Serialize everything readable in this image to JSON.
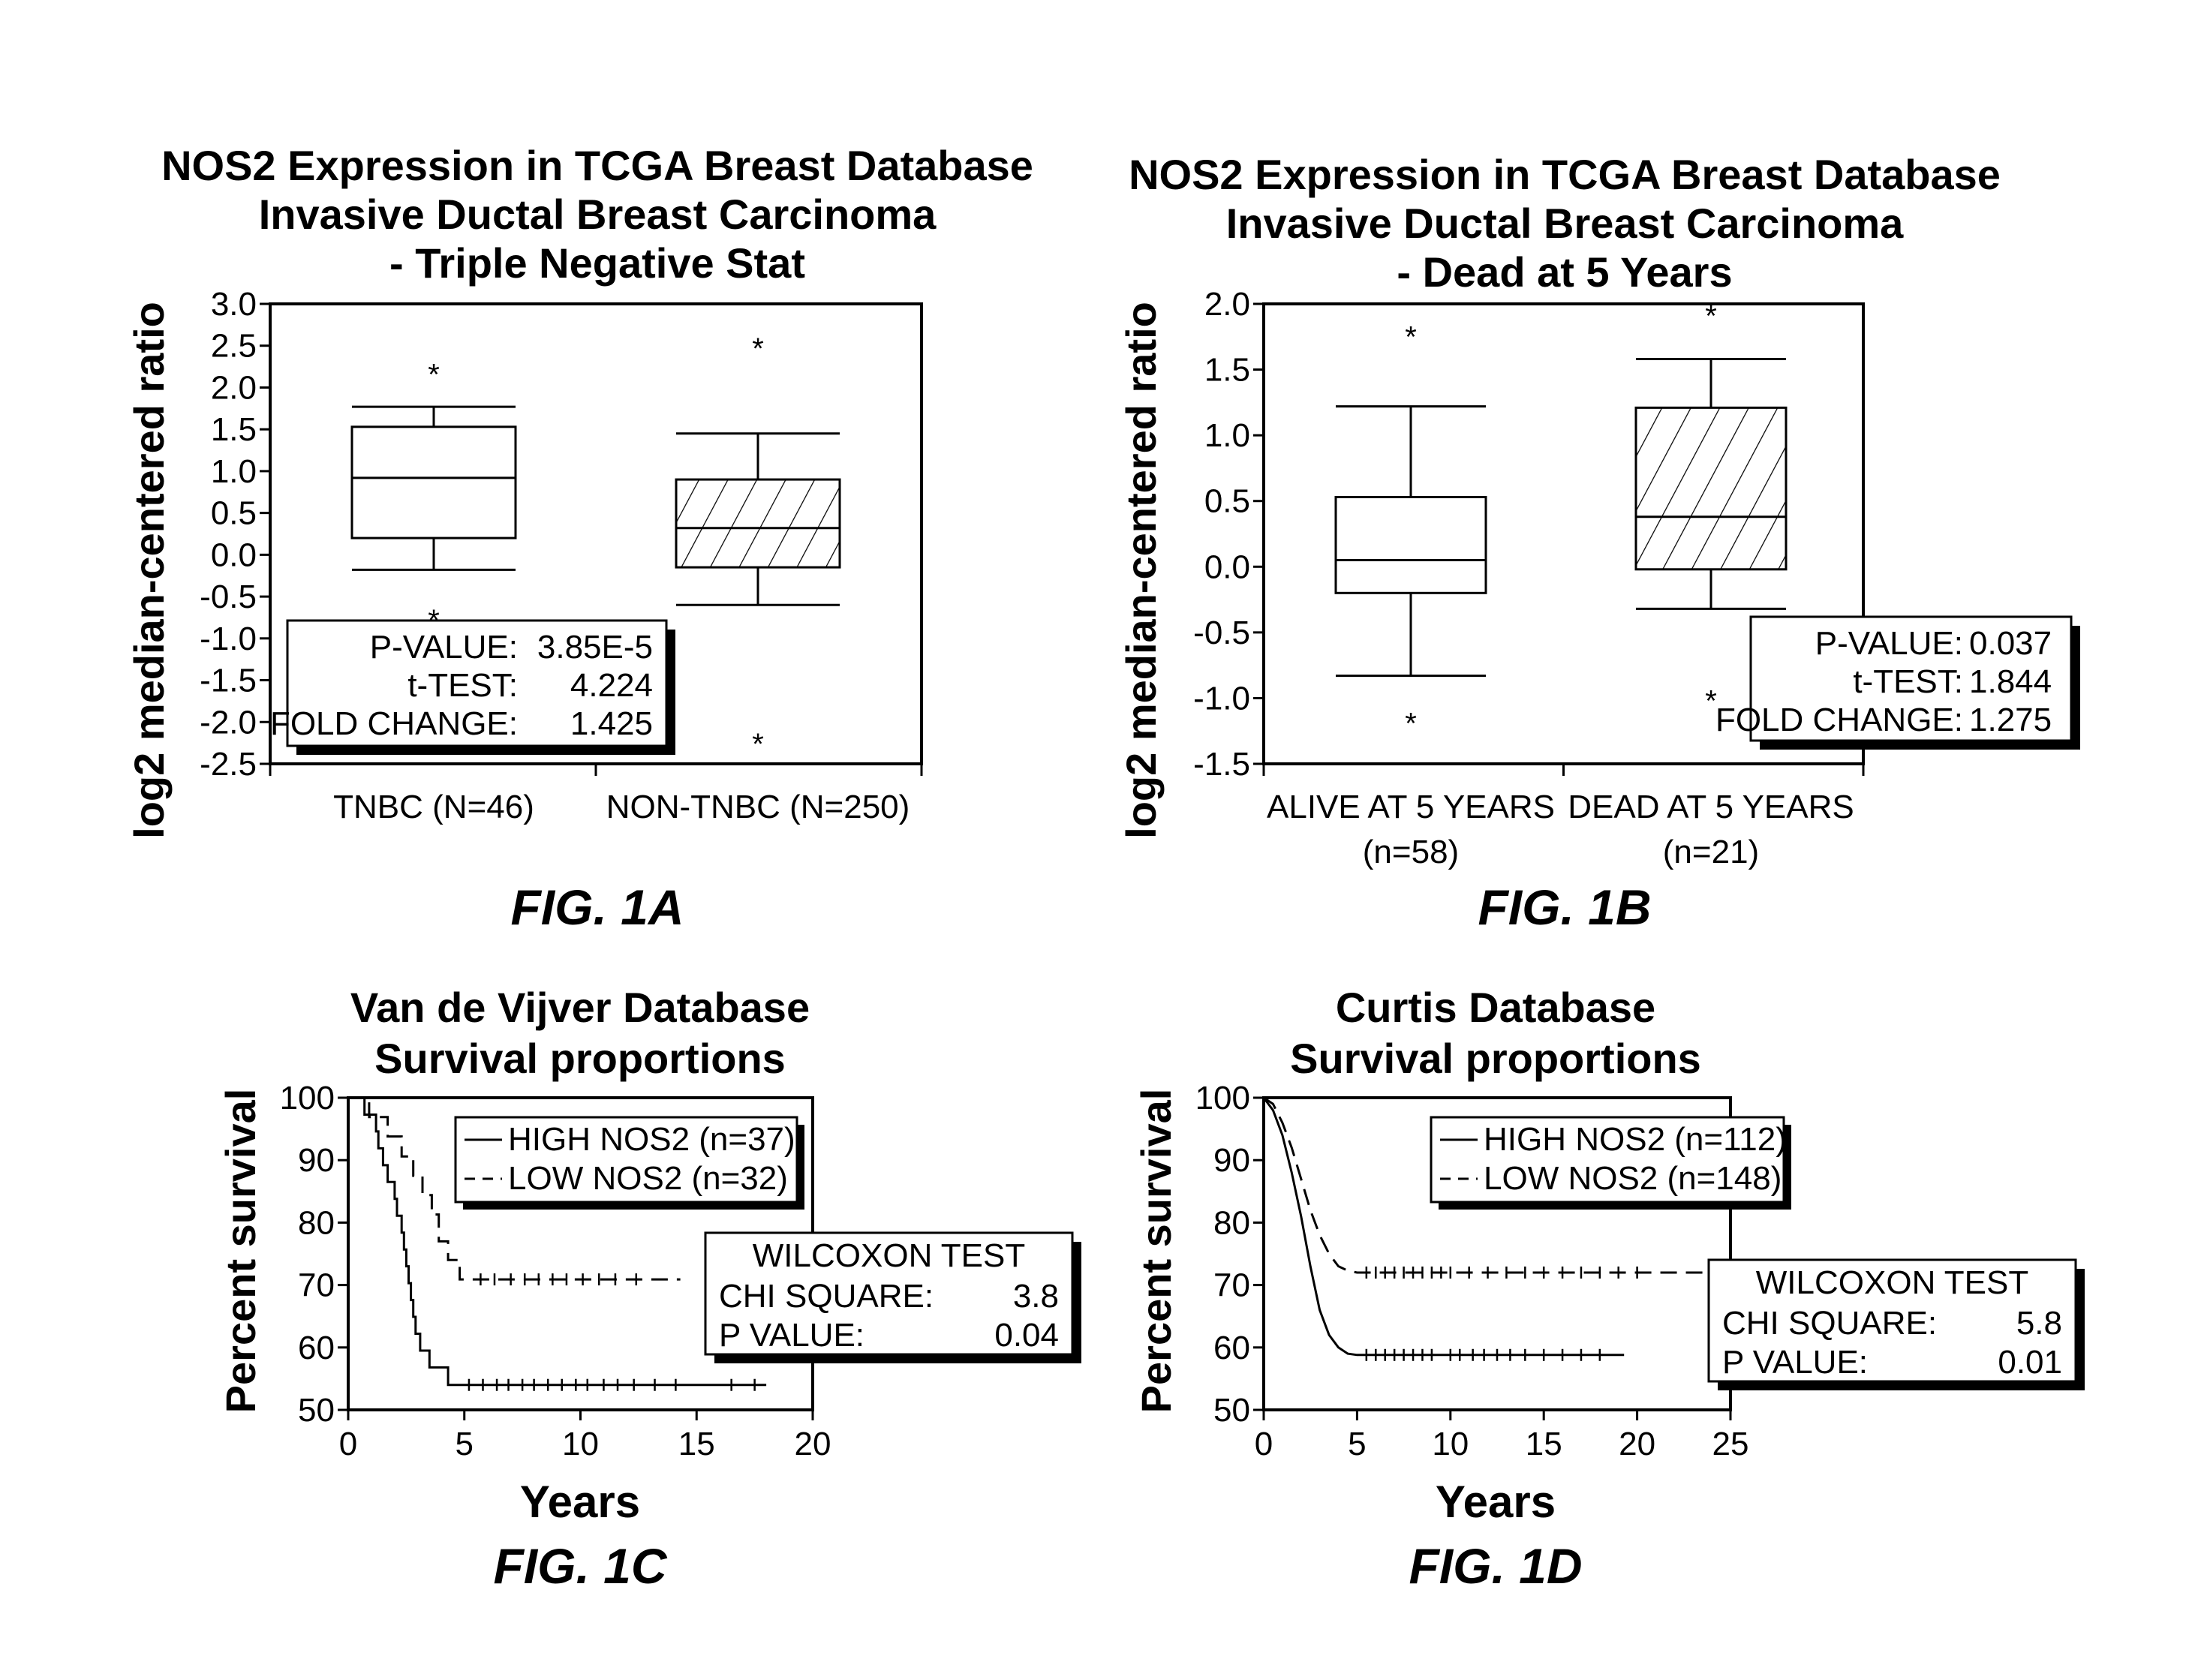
{
  "colors": {
    "ink": "#000000",
    "paper": "#ffffff"
  },
  "chart_data": [
    {
      "type": "box",
      "caption": "FIG. 1A",
      "title": [
        "NOS2 Expression in TCGA Breast Database",
        "Invasive Ductal Breast Carcinoma",
        "- Triple Negative Stat"
      ],
      "ylabel": "log2 median-centered ratio",
      "xlabel": "",
      "ylim": [
        -2.5,
        3.0
      ],
      "yticks": [
        "3.0",
        "2.5",
        "2.0",
        "1.5",
        "1.0",
        "0.5",
        "0.0",
        "-0.5",
        "-1.0",
        "-1.5",
        "-2.0",
        "-2.5"
      ],
      "categories": [
        "TNBC (N=46)",
        "NON-TNBC (N=250)"
      ],
      "boxes": [
        {
          "name": "TNBC (N=46)",
          "whisker_low": -0.18,
          "q1": 0.2,
          "median": 0.92,
          "q3": 1.53,
          "whisker_high": 1.77,
          "outliers": [
            2.27,
            -0.67
          ],
          "hatched": false
        },
        {
          "name": "NON-TNBC (N=250)",
          "whisker_low": -0.6,
          "q1": -0.15,
          "median": 0.32,
          "q3": 0.9,
          "whisker_high": 1.45,
          "outliers": [
            2.58,
            -2.15
          ],
          "hatched": true
        }
      ],
      "stats_box": {
        "placement": "bottom-left",
        "rows": [
          {
            "label": "P-VALUE:",
            "value": "3.85E-5"
          },
          {
            "label": "t-TEST:",
            "value": "4.224"
          },
          {
            "label": "FOLD CHANGE:",
            "value": "1.425"
          }
        ]
      }
    },
    {
      "type": "box",
      "caption": "FIG. 1B",
      "title": [
        "NOS2 Expression in TCGA Breast Database",
        "Invasive Ductal Breast Carcinoma",
        "- Dead at 5 Years"
      ],
      "ylabel": "log2 median-centered ratio",
      "xlabel": "",
      "ylim": [
        -1.5,
        2.0
      ],
      "yticks": [
        "2.0",
        "1.5",
        "1.0",
        "0.5",
        "0.0",
        "-0.5",
        "-1.0",
        "-1.5"
      ],
      "categories": [
        "ALIVE AT 5 YEARS",
        "DEAD AT 5 YEARS"
      ],
      "categories_sub": [
        "(n=58)",
        "(n=21)"
      ],
      "boxes": [
        {
          "name": "ALIVE AT 5 YEARS",
          "whisker_low": -0.83,
          "q1": -0.2,
          "median": 0.05,
          "q3": 0.53,
          "whisker_high": 1.22,
          "outliers": [
            1.82,
            -1.12
          ],
          "hatched": false
        },
        {
          "name": "DEAD AT 5 YEARS",
          "whisker_low": -0.32,
          "q1": -0.02,
          "median": 0.38,
          "q3": 1.21,
          "whisker_high": 1.58,
          "outliers": [
            1.98,
            -0.95
          ],
          "hatched": true
        }
      ],
      "stats_box": {
        "placement": "bottom-right",
        "rows": [
          {
            "label": "P-VALUE:",
            "value": "0.037"
          },
          {
            "label": "t-TEST:",
            "value": "1.844"
          },
          {
            "label": "FOLD CHANGE:",
            "value": "1.275"
          }
        ]
      }
    },
    {
      "type": "line",
      "subtype": "kaplan-meier",
      "caption": "FIG. 1C",
      "title": [
        "Van de Vijver Database",
        "Survival proportions"
      ],
      "ylabel": "Percent survival",
      "xlabel": "Years",
      "xlim": [
        0,
        20
      ],
      "ylim": [
        50,
        100
      ],
      "xticks": [
        "0",
        "5",
        "10",
        "15",
        "20"
      ],
      "yticks": [
        "100",
        "90",
        "80",
        "70",
        "60",
        "50"
      ],
      "legend_placement": "top-right",
      "series": [
        {
          "name": "HIGH NOS2 (n=37)",
          "style": "solid",
          "steps": [
            [
              0,
              100
            ],
            [
              0.7,
              100
            ],
            [
              0.7,
              97.3
            ],
            [
              1.2,
              97.3
            ],
            [
              1.2,
              94.6
            ],
            [
              1.3,
              94.6
            ],
            [
              1.3,
              91.9
            ],
            [
              1.5,
              91.9
            ],
            [
              1.5,
              89.2
            ],
            [
              1.7,
              89.2
            ],
            [
              1.7,
              86.5
            ],
            [
              2.0,
              86.5
            ],
            [
              2.0,
              83.8
            ],
            [
              2.1,
              83.8
            ],
            [
              2.1,
              81.1
            ],
            [
              2.3,
              81.1
            ],
            [
              2.3,
              78.4
            ],
            [
              2.4,
              78.4
            ],
            [
              2.4,
              75.7
            ],
            [
              2.5,
              75.7
            ],
            [
              2.5,
              73.0
            ],
            [
              2.6,
              73.0
            ],
            [
              2.6,
              70.3
            ],
            [
              2.7,
              70.3
            ],
            [
              2.7,
              67.6
            ],
            [
              2.8,
              67.6
            ],
            [
              2.8,
              64.9
            ],
            [
              2.9,
              64.9
            ],
            [
              2.9,
              62.2
            ],
            [
              3.1,
              62.2
            ],
            [
              3.1,
              59.5
            ],
            [
              3.5,
              59.5
            ],
            [
              3.5,
              56.8
            ],
            [
              4.3,
              56.8
            ],
            [
              4.3,
              54.0
            ],
            [
              18.0,
              54.0
            ]
          ],
          "censored": [
            5.2,
            5.8,
            6.4,
            6.9,
            7.5,
            8.0,
            8.6,
            9.2,
            9.8,
            10.3,
            11.0,
            11.6,
            12.3,
            13.2,
            14.1,
            16.5,
            17.5
          ]
        },
        {
          "name": "LOW NOS2 (n=32)",
          "style": "dashed",
          "steps": [
            [
              0,
              100
            ],
            [
              0.9,
              100
            ],
            [
              0.9,
              96.9
            ],
            [
              1.7,
              96.9
            ],
            [
              1.7,
              93.8
            ],
            [
              2.3,
              93.8
            ],
            [
              2.3,
              90.6
            ],
            [
              2.8,
              90.6
            ],
            [
              2.8,
              87.5
            ],
            [
              3.2,
              87.5
            ],
            [
              3.2,
              84.4
            ],
            [
              3.6,
              84.4
            ],
            [
              3.6,
              81.3
            ],
            [
              3.9,
              81.3
            ],
            [
              3.9,
              77.0
            ],
            [
              4.3,
              77.0
            ],
            [
              4.3,
              74.0
            ],
            [
              4.8,
              74.0
            ],
            [
              4.8,
              70.9
            ],
            [
              14.3,
              70.9
            ]
          ],
          "censored": [
            5.7,
            6.3,
            7.0,
            7.6,
            8.2,
            8.8,
            9.4,
            10.1,
            10.8,
            11.5,
            12.4
          ]
        }
      ],
      "stats_box": {
        "title": "WILCOXON TEST",
        "rows": [
          {
            "label": "CHI SQUARE:",
            "value": "3.8"
          },
          {
            "label": "P VALUE:",
            "value": "0.04"
          }
        ]
      }
    },
    {
      "type": "line",
      "subtype": "kaplan-meier",
      "caption": "FIG. 1D",
      "title": [
        "Curtis Database",
        "Survival proportions"
      ],
      "ylabel": "Percent survival",
      "xlabel": "Years",
      "xlim": [
        0,
        25
      ],
      "ylim": [
        50,
        100
      ],
      "xticks": [
        "0",
        "5",
        "10",
        "15",
        "20",
        "25"
      ],
      "yticks": [
        "100",
        "90",
        "80",
        "70",
        "60",
        "50"
      ],
      "legend_placement": "top-right",
      "series": [
        {
          "name": "HIGH NOS2 (n=112)",
          "style": "solid",
          "points": [
            [
              0,
              100
            ],
            [
              0.5,
              98
            ],
            [
              1.0,
              94
            ],
            [
              1.5,
              88
            ],
            [
              2.0,
              81
            ],
            [
              2.5,
              73
            ],
            [
              3.0,
              66
            ],
            [
              3.5,
              62
            ],
            [
              4.0,
              60
            ],
            [
              4.5,
              59
            ],
            [
              5.0,
              58.8
            ],
            [
              19.3,
              58.8
            ]
          ],
          "censored": [
            5.5,
            6.0,
            6.5,
            7.0,
            7.5,
            8.0,
            8.5,
            9.0,
            10.0,
            10.5,
            11.2,
            11.8,
            12.5,
            13.2,
            14.0,
            15.0,
            16.0,
            17.0,
            18.0
          ]
        },
        {
          "name": "LOW NOS2 (n=148)",
          "style": "dashed",
          "points": [
            [
              0,
              100
            ],
            [
              0.5,
              99
            ],
            [
              1.0,
              96
            ],
            [
              1.5,
              92
            ],
            [
              2.0,
              87
            ],
            [
              2.5,
              82
            ],
            [
              3.0,
              78
            ],
            [
              3.5,
              75
            ],
            [
              4.0,
              73
            ],
            [
              4.5,
              72.3
            ],
            [
              5.0,
              72
            ],
            [
              23.5,
              72
            ]
          ],
          "censored": [
            5.5,
            6.0,
            6.5,
            7.0,
            7.5,
            8.0,
            8.5,
            9.0,
            9.5,
            10.0,
            11.0,
            12.0,
            13.0,
            14.0,
            15.0,
            16.0,
            17.0,
            18.0,
            19.0,
            20.0
          ]
        }
      ],
      "stats_box": {
        "title": "WILCOXON TEST",
        "rows": [
          {
            "label": "CHI SQUARE:",
            "value": "5.8"
          },
          {
            "label": "P VALUE:",
            "value": "0.01"
          }
        ]
      }
    }
  ]
}
